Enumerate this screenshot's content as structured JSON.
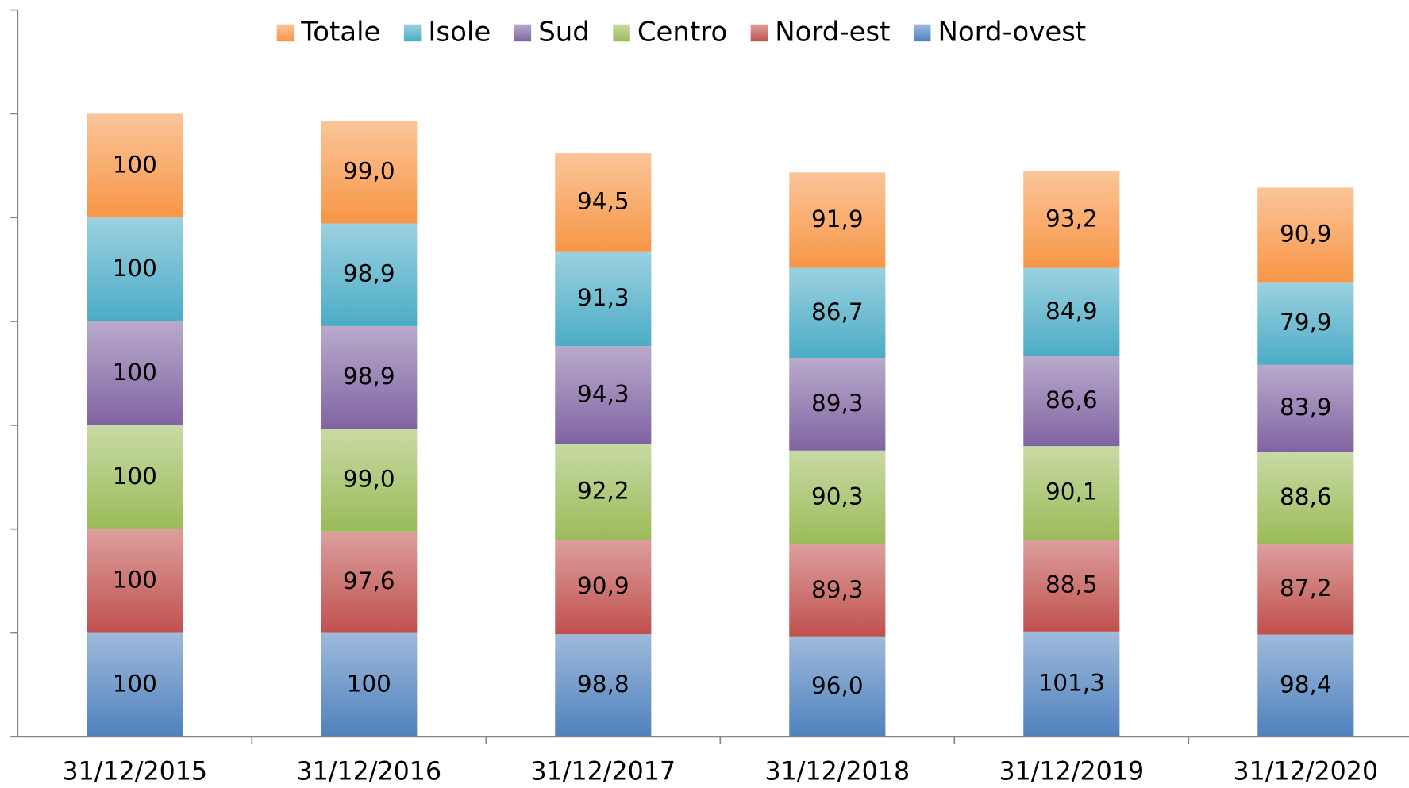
{
  "chart_data": {
    "type": "stacked_bar",
    "categories": [
      "31/12/2015",
      "31/12/2016",
      "31/12/2017",
      "31/12/2018",
      "31/12/2019",
      "31/12/2020"
    ],
    "series": [
      {
        "name": "Nord-ovest",
        "color": "#4f81bd",
        "values": [
          100,
          100,
          98.8,
          96.0,
          101.3,
          98.4
        ],
        "value_labels": [
          "100",
          "100",
          "98,8",
          "96,0",
          "101,3",
          "98,4"
        ]
      },
      {
        "name": "Nord-est",
        "color": "#c0504d",
        "values": [
          100,
          97.6,
          90.9,
          89.3,
          88.5,
          87.2
        ],
        "value_labels": [
          "100",
          "97,6",
          "90,9",
          "89,3",
          "88,5",
          "87,2"
        ]
      },
      {
        "name": "Centro",
        "color": "#9bbb59",
        "values": [
          100,
          99.0,
          92.2,
          90.3,
          90.1,
          88.6
        ],
        "value_labels": [
          "100",
          "99,0",
          "92,2",
          "90,3",
          "90,1",
          "88,6"
        ]
      },
      {
        "name": "Sud",
        "color": "#8064a2",
        "values": [
          100,
          98.9,
          94.3,
          89.3,
          86.6,
          83.9
        ],
        "value_labels": [
          "100",
          "98,9",
          "94,3",
          "89,3",
          "86,6",
          "83,9"
        ]
      },
      {
        "name": "Isole",
        "color": "#4bacc6",
        "values": [
          100,
          98.9,
          91.3,
          86.7,
          84.9,
          79.9
        ],
        "value_labels": [
          "100",
          "98,9",
          "91,3",
          "86,7",
          "84,9",
          "79,9"
        ]
      },
      {
        "name": "Totale",
        "color": "#f79646",
        "values": [
          100,
          99.0,
          94.5,
          91.9,
          93.2,
          90.9
        ],
        "value_labels": [
          "100",
          "99,0",
          "94,5",
          "91,9",
          "93,2",
          "90,9"
        ]
      }
    ],
    "ylim": [
      0,
      700
    ],
    "yticks": [
      0,
      100,
      200,
      300,
      400,
      500,
      600,
      700
    ],
    "grid": false,
    "legend": "top"
  }
}
